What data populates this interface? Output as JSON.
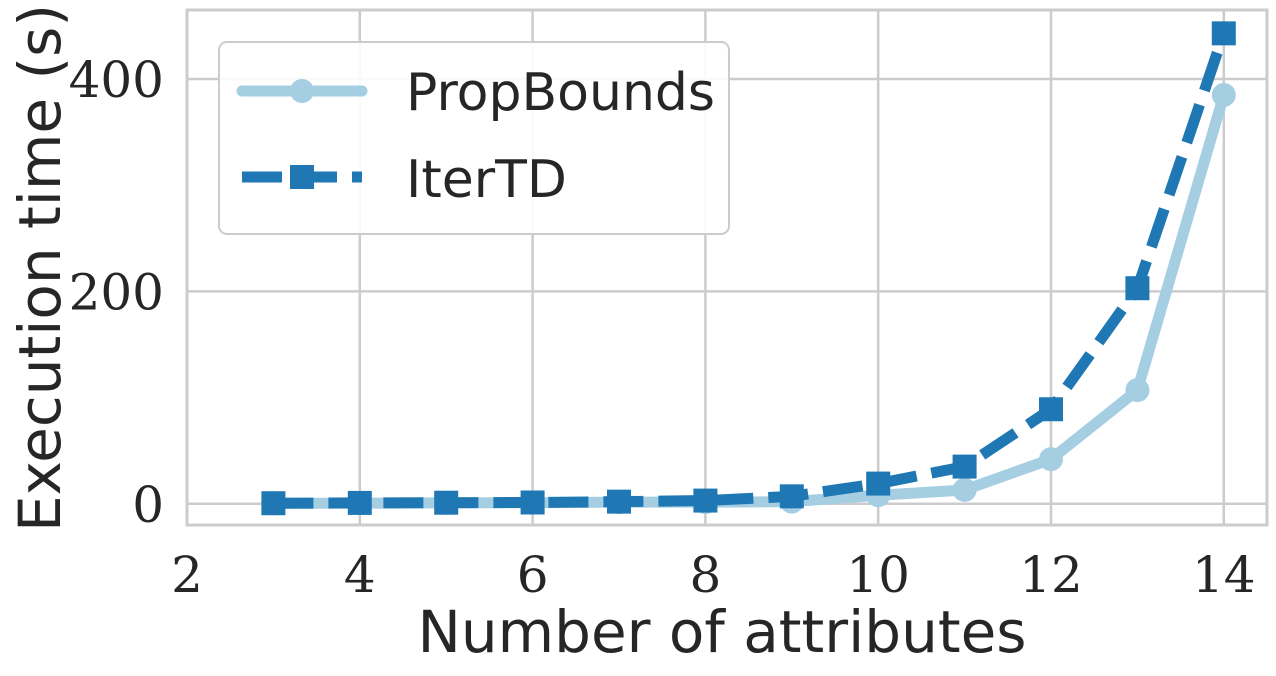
{
  "chart_data": {
    "type": "line",
    "xlabel": "Number of attributes",
    "ylabel": "Execution time (s)",
    "xlim": [
      2,
      14.5
    ],
    "ylim": [
      -20,
      465
    ],
    "xticks": [
      2,
      4,
      6,
      8,
      10,
      12,
      14
    ],
    "yticks": [
      0,
      200,
      400
    ],
    "grid": true,
    "legend_position": "top-left",
    "x": [
      3,
      4,
      5,
      6,
      7,
      8,
      9,
      10,
      11,
      12,
      13,
      14
    ],
    "series": [
      {
        "name": "PropBounds",
        "color": "#a6cee3",
        "line_style": "solid",
        "marker": "circle",
        "values": [
          0.5,
          0.5,
          0.8,
          1.0,
          1.5,
          1.5,
          2.0,
          8.0,
          13.0,
          42.0,
          107.0,
          385.0
        ]
      },
      {
        "name": "IterTD",
        "color": "#1f78b4",
        "line_style": "dashed",
        "marker": "square",
        "values": [
          0.5,
          0.8,
          1.0,
          1.2,
          2.0,
          3.0,
          7.0,
          19.0,
          35.0,
          89.0,
          203.0,
          443.0
        ]
      }
    ]
  }
}
